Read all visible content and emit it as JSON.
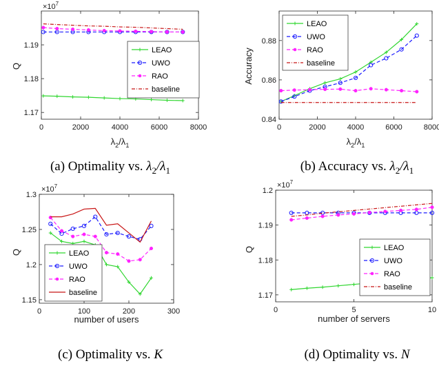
{
  "colors": {
    "LEAO": "#2fd62f",
    "UWO": "#1a1aff",
    "RAO": "#ff22ff",
    "baseline": "#c81414"
  },
  "chart_data": [
    {
      "type": "line",
      "caption": "(a) Optimality vs. λ2/λ1",
      "xlabel": "λ2/λ1",
      "ylabel": "Q",
      "y_multiplier": "×10^7",
      "xlim": [
        0,
        8000
      ],
      "ylim": [
        1.168,
        1.2
      ],
      "xticks": [
        0,
        2000,
        4000,
        6000,
        8000
      ],
      "yticks": [
        1.17,
        1.18,
        1.19
      ],
      "grid": false,
      "legend_position": "right",
      "x": [
        100,
        800,
        1600,
        2400,
        3200,
        4000,
        4800,
        5600,
        6400,
        7200
      ],
      "series": [
        {
          "name": "LEAO",
          "marker": "plus",
          "style": "solid",
          "values": [
            1.1749,
            1.1748,
            1.1746,
            1.1745,
            1.1743,
            1.1741,
            1.174,
            1.1738,
            1.1736,
            1.1735
          ]
        },
        {
          "name": "UWO",
          "marker": "circle",
          "style": "dashed",
          "values": [
            1.1938,
            1.1938,
            1.1938,
            1.1938,
            1.1938,
            1.1938,
            1.1938,
            1.1938,
            1.1938,
            1.1938
          ]
        },
        {
          "name": "RAO",
          "marker": "dot",
          "style": "dashed",
          "values": [
            1.1951,
            1.1948,
            1.1946,
            1.1944,
            1.1942,
            1.1941,
            1.194,
            1.1939,
            1.1938,
            1.1938
          ]
        },
        {
          "name": "baseline",
          "marker": "none",
          "style": "dashdot",
          "values": [
            1.1962,
            1.196,
            1.1958,
            1.1956,
            1.1955,
            1.1953,
            1.1952,
            1.195,
            1.1948,
            1.1946
          ]
        }
      ]
    },
    {
      "type": "line",
      "caption": "(b) Accuracy vs. λ2/λ1",
      "xlabel": "λ2/λ1",
      "ylabel": "Accuracy",
      "xlim": [
        0,
        8000
      ],
      "ylim": [
        0.84,
        0.895
      ],
      "xticks": [
        0,
        2000,
        4000,
        6000,
        8000
      ],
      "yticks": [
        0.84,
        0.86,
        0.88
      ],
      "grid": false,
      "legend_position": "top-left",
      "x": [
        100,
        800,
        1600,
        2400,
        3200,
        4000,
        4800,
        5600,
        6400,
        7200
      ],
      "series": [
        {
          "name": "LEAO",
          "marker": "plus",
          "style": "solid",
          "values": [
            0.849,
            0.852,
            0.8555,
            0.8585,
            0.8605,
            0.864,
            0.869,
            0.874,
            0.8805,
            0.8885
          ]
        },
        {
          "name": "UWO",
          "marker": "circle",
          "style": "dashed",
          "values": [
            0.849,
            0.8515,
            0.8545,
            0.8565,
            0.8585,
            0.861,
            0.8675,
            0.871,
            0.8755,
            0.8825
          ]
        },
        {
          "name": "RAO",
          "marker": "dot",
          "style": "dashed",
          "values": [
            0.8545,
            0.8548,
            0.855,
            0.8552,
            0.8553,
            0.8545,
            0.8555,
            0.855,
            0.8545,
            0.854
          ]
        },
        {
          "name": "baseline",
          "marker": "none",
          "style": "dashdot",
          "values": [
            0.8485,
            0.8485,
            0.8485,
            0.8485,
            0.8485,
            0.8485,
            0.8485,
            0.8485,
            0.8485,
            0.8485
          ]
        }
      ]
    },
    {
      "type": "line",
      "caption": "(c) Optimality vs. K",
      "xlabel": "number of users",
      "ylabel": "Q",
      "y_multiplier": "×10^7",
      "xlim": [
        0,
        300
      ],
      "ylim": [
        1.145,
        1.3
      ],
      "xticks": [
        0,
        100,
        200,
        300
      ],
      "yticks": [
        1.15,
        1.2,
        1.25,
        1.3
      ],
      "grid": false,
      "legend_position": "bottom-left",
      "x": [
        25,
        50,
        75,
        100,
        125,
        150,
        175,
        200,
        225,
        250
      ],
      "series": [
        {
          "name": "LEAO",
          "marker": "plus",
          "style": "solid",
          "values": [
            1.245,
            1.233,
            1.23,
            1.233,
            1.228,
            1.2,
            1.197,
            1.175,
            1.158,
            1.181
          ]
        },
        {
          "name": "UWO",
          "marker": "circle",
          "style": "dashed",
          "values": [
            1.258,
            1.244,
            1.251,
            1.255,
            1.268,
            1.243,
            1.245,
            1.24,
            1.236,
            1.255
          ]
        },
        {
          "name": "RAO",
          "marker": "dot",
          "style": "dashed",
          "values": [
            1.267,
            1.248,
            1.24,
            1.243,
            1.24,
            1.217,
            1.215,
            1.205,
            1.207,
            1.223
          ]
        },
        {
          "name": "baseline",
          "marker": "none",
          "style": "solid",
          "values": [
            1.268,
            1.268,
            1.272,
            1.279,
            1.28,
            1.256,
            1.258,
            1.245,
            1.232,
            1.262
          ]
        }
      ]
    },
    {
      "type": "line",
      "caption": "(d) Optimality vs. N",
      "xlabel": "number of servers",
      "ylabel": "Q",
      "y_multiplier": "×10^7",
      "xlim": [
        0,
        10
      ],
      "ylim": [
        1.168,
        1.2
      ],
      "xticks": [
        0,
        5,
        10
      ],
      "yticks": [
        1.17,
        1.18,
        1.19,
        1.2
      ],
      "grid": false,
      "legend_position": "right",
      "x": [
        1,
        2,
        3,
        4,
        5,
        6,
        7,
        8,
        9,
        10
      ],
      "series": [
        {
          "name": "LEAO",
          "marker": "plus",
          "style": "solid",
          "values": [
            1.1715,
            1.1719,
            1.1722,
            1.1726,
            1.173,
            1.1734,
            1.1738,
            1.1741,
            1.1745,
            1.1749
          ]
        },
        {
          "name": "UWO",
          "marker": "circle",
          "style": "dashed",
          "values": [
            1.1935,
            1.1935,
            1.1935,
            1.1935,
            1.1935,
            1.1935,
            1.1935,
            1.1935,
            1.1935,
            1.1935
          ]
        },
        {
          "name": "RAO",
          "marker": "dot",
          "style": "dashed",
          "values": [
            1.1915,
            1.192,
            1.1925,
            1.1929,
            1.1932,
            1.1936,
            1.1939,
            1.1942,
            1.1945,
            1.1951
          ]
        },
        {
          "name": "baseline",
          "marker": "none",
          "style": "dashdot",
          "values": [
            1.1925,
            1.1929,
            1.1934,
            1.1938,
            1.1942,
            1.1946,
            1.195,
            1.1954,
            1.1958,
            1.1962
          ]
        }
      ]
    }
  ]
}
